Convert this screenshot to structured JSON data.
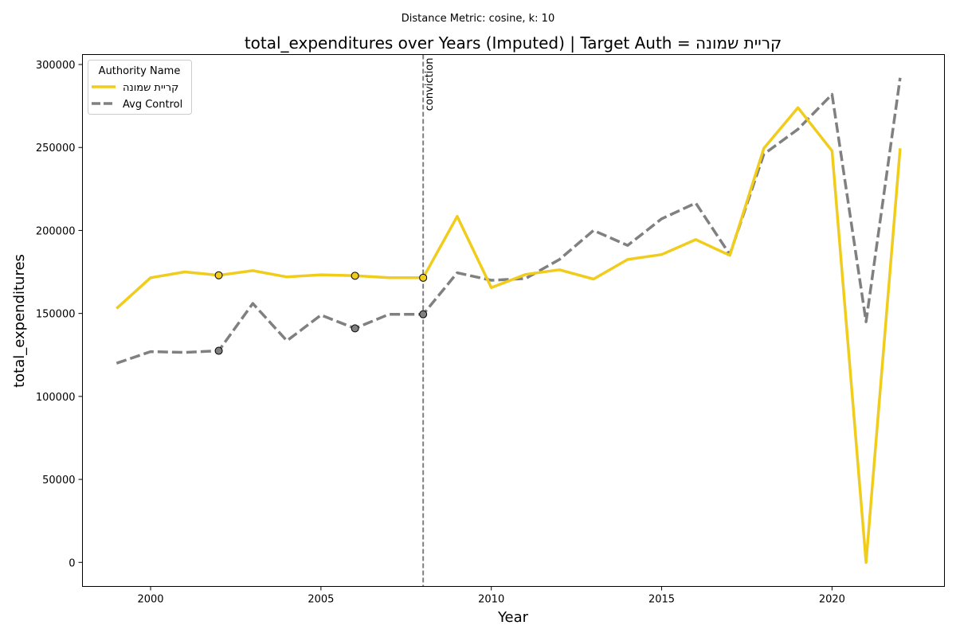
{
  "suptitle": "Distance Metric: cosine, k: 10",
  "chart_data": {
    "type": "line",
    "title": "total_expenditures over Years (Imputed) | Target Auth = קריית שמונה",
    "xlabel": "Year",
    "ylabel": "total_expenditures",
    "xlim": [
      1998,
      2023.3
    ],
    "ylim": [
      -14500,
      306000
    ],
    "x_ticks": [
      2000,
      2005,
      2010,
      2015,
      2020
    ],
    "y_ticks": [
      0,
      50000,
      100000,
      150000,
      200000,
      250000,
      300000
    ],
    "x": [
      1999,
      2000,
      2001,
      2002,
      2003,
      2004,
      2005,
      2006,
      2007,
      2008,
      2009,
      2010,
      2011,
      2012,
      2013,
      2014,
      2015,
      2016,
      2017,
      2018,
      2019,
      2020,
      2021,
      2022
    ],
    "series": [
      {
        "name": "קריית שמונה",
        "color": "#f0cc1c",
        "style": "solid",
        "values": [
          153000,
          171500,
          175000,
          173000,
          175800,
          172000,
          173300,
          172700,
          171500,
          171500,
          208500,
          165500,
          173500,
          176300,
          170700,
          182500,
          185500,
          194500,
          185000,
          249500,
          274000,
          248000,
          0,
          249500
        ],
        "imputed_years": [
          2002,
          2006,
          2008
        ]
      },
      {
        "name": "Avg Control",
        "color": "#808080",
        "style": "dashed",
        "values": [
          120000,
          127000,
          126500,
          127500,
          156000,
          133500,
          149000,
          141000,
          149500,
          149500,
          174500,
          170000,
          171000,
          182500,
          200000,
          191000,
          207000,
          216500,
          185500,
          246000,
          261000,
          282000,
          145000,
          292000
        ],
        "imputed_years": [
          2002,
          2006,
          2008
        ]
      }
    ],
    "vline": {
      "x": 2008,
      "label": "conviction",
      "color": "#808080"
    },
    "legend": {
      "title": "Authority Name",
      "placement": "top-left"
    },
    "grid": false
  }
}
